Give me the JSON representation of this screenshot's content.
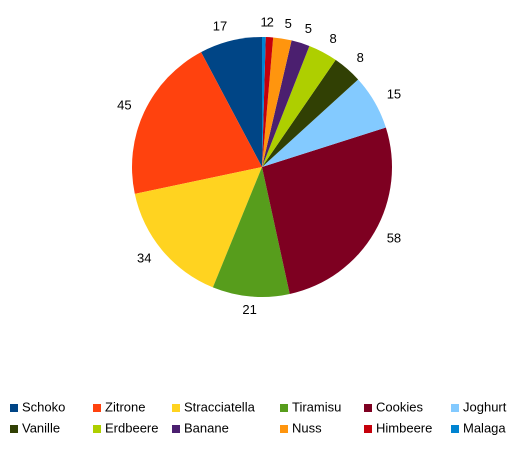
{
  "chart_data": {
    "type": "pie",
    "categories": [
      "Schoko",
      "Zitrone",
      "Stracciatella",
      "Tiramisu",
      "Cookies",
      "Joghurt",
      "Vanille",
      "Erdbeere",
      "Banane",
      "Nuss",
      "Himbeere",
      "Malaga"
    ],
    "values": [
      17,
      45,
      34,
      21,
      58,
      15,
      8,
      8,
      5,
      5,
      2,
      1
    ],
    "colors": [
      "#004586",
      "#ff420e",
      "#ffd320",
      "#579d1c",
      "#7e0021",
      "#83caff",
      "#314004",
      "#aecf00",
      "#4b1f6f",
      "#ff950e",
      "#c5000b",
      "#0084d1"
    ],
    "legend": "bottom"
  }
}
